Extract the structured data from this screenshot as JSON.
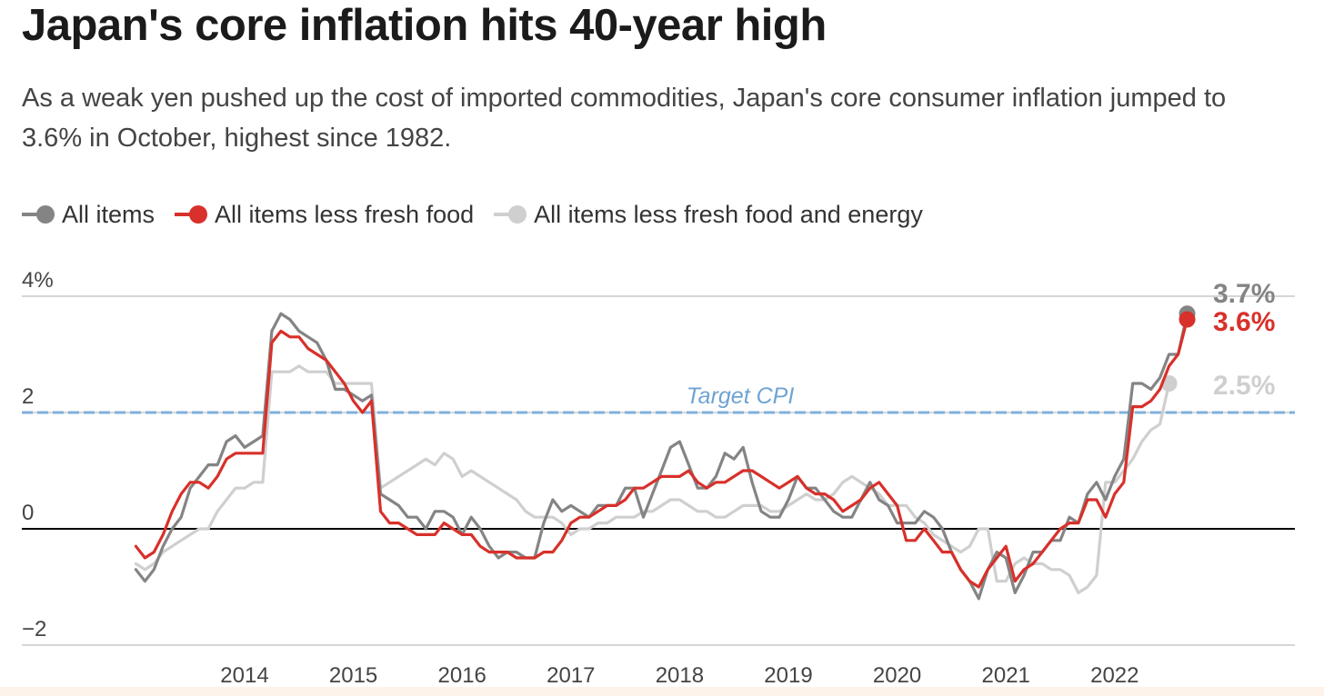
{
  "title": "Japan's core inflation hits 40-year high",
  "subtitle": "As a weak yen pushed up the cost of imported commodities, Japan's core consumer inflation jumped to 3.6% in October, highest since 1982.",
  "colors": {
    "all_items": "#848484",
    "less_fresh_food": "#d8302a",
    "less_fresh_food_energy": "#cfcfcf",
    "target": "#7fb0dc",
    "axis": "#000000",
    "grid": "#c9c9c9"
  },
  "chart_data": {
    "type": "line",
    "title": "Japan's core inflation hits 40-year high",
    "ylim": [
      -2,
      4
    ],
    "y_ticks": [
      {
        "value": 4,
        "label": "4%"
      },
      {
        "value": 2,
        "label": "2"
      },
      {
        "value": 0,
        "label": "0"
      },
      {
        "value": -2,
        "label": "−2"
      }
    ],
    "x_ticks": [
      "2014",
      "2015",
      "2016",
      "2017",
      "2018",
      "2019",
      "2020",
      "2021",
      "2022"
    ],
    "x_start": "2013-01",
    "target": {
      "value": 2,
      "label": "Target CPI"
    },
    "legend_position": "top-left",
    "series": [
      {
        "key": "all_items",
        "name": "All items",
        "end_label": "3.7%",
        "values": [
          -0.7,
          -0.9,
          -0.7,
          -0.3,
          0.0,
          0.2,
          0.7,
          0.9,
          1.1,
          1.1,
          1.5,
          1.6,
          1.4,
          1.5,
          1.6,
          3.4,
          3.7,
          3.6,
          3.4,
          3.3,
          3.2,
          2.9,
          2.4,
          2.4,
          2.3,
          2.2,
          2.3,
          0.6,
          0.5,
          0.4,
          0.2,
          0.2,
          0.0,
          0.3,
          0.3,
          0.2,
          -0.1,
          0.2,
          0.0,
          -0.3,
          -0.5,
          -0.4,
          -0.4,
          -0.5,
          -0.5,
          0.1,
          0.5,
          0.3,
          0.4,
          0.3,
          0.2,
          0.4,
          0.4,
          0.4,
          0.7,
          0.7,
          0.2,
          0.6,
          1.0,
          1.4,
          1.5,
          1.1,
          0.7,
          0.7,
          0.9,
          1.3,
          1.2,
          1.4,
          0.8,
          0.3,
          0.2,
          0.2,
          0.5,
          0.9,
          0.7,
          0.7,
          0.5,
          0.3,
          0.2,
          0.2,
          0.5,
          0.8,
          0.5,
          0.4,
          0.1,
          0.1,
          0.1,
          0.3,
          0.2,
          0.0,
          -0.4,
          -0.7,
          -0.9,
          -1.2,
          -0.7,
          -0.4,
          -0.5,
          -1.1,
          -0.8,
          -0.4,
          -0.4,
          -0.2,
          -0.2,
          0.2,
          0.1,
          0.6,
          0.8,
          0.5,
          0.9,
          1.2,
          2.5,
          2.5,
          2.4,
          2.6,
          3.0,
          3.0,
          3.7
        ]
      },
      {
        "key": "less_fresh_food",
        "name": "All items less fresh food",
        "end_label": "3.6%",
        "values": [
          -0.3,
          -0.5,
          -0.4,
          -0.1,
          0.3,
          0.6,
          0.8,
          0.8,
          0.7,
          0.9,
          1.2,
          1.3,
          1.3,
          1.3,
          1.3,
          3.2,
          3.4,
          3.3,
          3.3,
          3.1,
          3.0,
          2.9,
          2.7,
          2.5,
          2.2,
          2.0,
          2.2,
          0.3,
          0.1,
          0.1,
          0.0,
          -0.1,
          -0.1,
          -0.1,
          0.1,
          0.0,
          -0.1,
          -0.1,
          -0.3,
          -0.4,
          -0.4,
          -0.4,
          -0.5,
          -0.5,
          -0.5,
          -0.4,
          -0.4,
          -0.2,
          0.1,
          0.2,
          0.2,
          0.3,
          0.4,
          0.4,
          0.5,
          0.7,
          0.7,
          0.8,
          0.9,
          0.9,
          0.9,
          1.0,
          0.8,
          0.7,
          0.8,
          0.8,
          0.9,
          1.0,
          1.0,
          0.9,
          0.8,
          0.7,
          0.8,
          0.9,
          0.7,
          0.6,
          0.6,
          0.5,
          0.3,
          0.4,
          0.5,
          0.7,
          0.8,
          0.6,
          0.4,
          -0.2,
          -0.2,
          0.0,
          -0.2,
          -0.4,
          -0.4,
          -0.7,
          -0.9,
          -1.0,
          -0.7,
          -0.5,
          -0.3,
          -0.9,
          -0.7,
          -0.6,
          -0.4,
          -0.2,
          0.0,
          0.1,
          0.1,
          0.5,
          0.5,
          0.2,
          0.6,
          0.8,
          2.1,
          2.1,
          2.2,
          2.4,
          2.8,
          3.0,
          3.6
        ]
      },
      {
        "key": "less_fresh_food_energy",
        "name": "All items less fresh food and energy",
        "end_label": "2.5%",
        "values": [
          -0.6,
          -0.7,
          -0.6,
          -0.4,
          -0.3,
          -0.2,
          -0.1,
          0.0,
          0.0,
          0.3,
          0.5,
          0.7,
          0.7,
          0.8,
          0.8,
          2.7,
          2.7,
          2.7,
          2.8,
          2.7,
          2.7,
          2.7,
          2.5,
          2.5,
          2.5,
          2.5,
          2.5,
          0.7,
          0.8,
          0.9,
          1.0,
          1.1,
          1.2,
          1.1,
          1.3,
          1.2,
          0.9,
          1.0,
          0.9,
          0.8,
          0.7,
          0.6,
          0.5,
          0.3,
          0.2,
          0.2,
          0.2,
          0.1,
          -0.1,
          0.0,
          0.0,
          0.1,
          0.1,
          0.2,
          0.2,
          0.2,
          0.3,
          0.3,
          0.4,
          0.5,
          0.5,
          0.4,
          0.3,
          0.3,
          0.2,
          0.2,
          0.3,
          0.4,
          0.4,
          0.4,
          0.3,
          0.3,
          0.4,
          0.5,
          0.6,
          0.5,
          0.5,
          0.6,
          0.8,
          0.9,
          0.8,
          0.7,
          0.6,
          0.4,
          0.4,
          0.4,
          0.2,
          0.1,
          -0.1,
          -0.2,
          -0.3,
          -0.4,
          -0.3,
          0.0,
          0.0,
          -0.9,
          -0.9,
          -0.6,
          -0.5,
          -0.6,
          -0.6,
          -0.7,
          -0.7,
          -0.8,
          -1.1,
          -1.0,
          -0.8,
          0.8,
          0.8,
          1.0,
          1.2,
          1.5,
          1.7,
          1.8,
          2.5
        ]
      }
    ]
  }
}
